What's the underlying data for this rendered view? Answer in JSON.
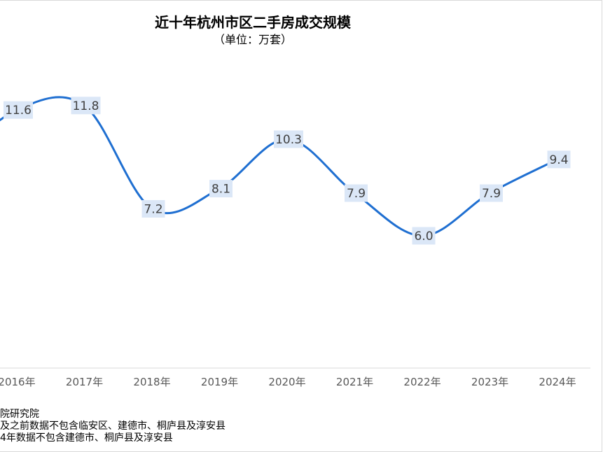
{
  "chart_data": {
    "type": "line",
    "title": "近十年杭州市区二手房成交规模",
    "subtitle": "（单位：万套）",
    "categories": [
      "2016年",
      "2017年",
      "2018年",
      "2019年",
      "2020年",
      "2021年",
      "2022年",
      "2023年",
      "2024年"
    ],
    "values": [
      11.6,
      11.8,
      7.2,
      8.1,
      10.3,
      7.9,
      6.0,
      7.9,
      9.4
    ],
    "data_labels": [
      "11.6",
      "11.8",
      "7.2",
      "8.1",
      "10.3",
      "7.9",
      "6.0",
      "7.9",
      "9.4"
    ],
    "line_color": "#1f6fd1",
    "label_bg_color": "#dbe7f7",
    "smooth": true,
    "grid": false
  },
  "notes": [
    "院研究院",
    "及之前数据不包含临安区、建德市、桐庐县及淳安县",
    "4年数据不包含建德市、桐庐县及淳安县"
  ]
}
